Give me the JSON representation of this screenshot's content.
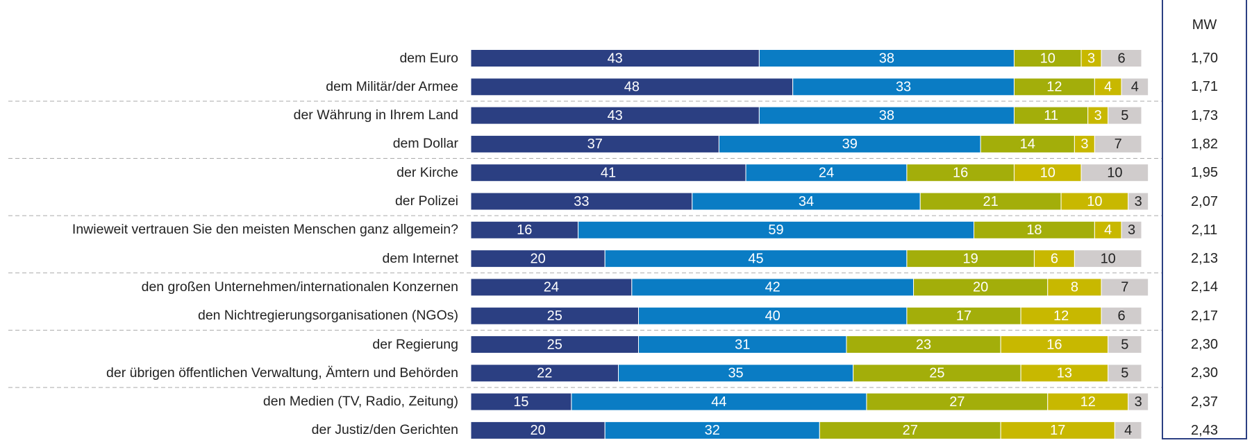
{
  "chart_data": {
    "type": "stacked-bar-horizontal",
    "categories": [
      "dem Euro",
      "dem Militär/der Armee",
      "der Währung in Ihrem Land",
      "dem Dollar",
      "der Kirche",
      "der Polizei",
      "Inwieweit vertrauen Sie den meisten Menschen ganz allgemein?",
      "dem Internet",
      "den großen Unternehmen/internationalen Konzernen",
      "den Nichtregierungsorganisationen (NGOs)",
      "der Regierung",
      "der übrigen öffentlichen Verwaltung, Ämtern und Behörden",
      "den Medien (TV, Radio, Zeitung)",
      "der Justiz/den Gerichten"
    ],
    "series": [
      {
        "color": "#2b3f82",
        "values": [
          43,
          48,
          43,
          37,
          41,
          33,
          16,
          20,
          24,
          25,
          25,
          22,
          15,
          20
        ]
      },
      {
        "color": "#0a7cc4",
        "values": [
          38,
          33,
          38,
          39,
          24,
          34,
          59,
          45,
          42,
          40,
          31,
          35,
          44,
          32
        ]
      },
      {
        "color": "#a3ae0a",
        "values": [
          10,
          12,
          11,
          14,
          16,
          21,
          18,
          19,
          20,
          17,
          23,
          25,
          27,
          27
        ]
      },
      {
        "color": "#c8b800",
        "values": [
          3,
          4,
          3,
          3,
          10,
          10,
          4,
          6,
          8,
          12,
          16,
          13,
          12,
          17
        ]
      },
      {
        "color": "#d0cccc",
        "values": [
          6,
          4,
          5,
          7,
          10,
          3,
          3,
          10,
          7,
          6,
          5,
          5,
          3,
          4
        ]
      }
    ],
    "xlim": [
      0,
      100
    ],
    "mw_title": "MW",
    "mw": [
      "1,70",
      "1,71",
      "1,73",
      "1,82",
      "1,95",
      "2,07",
      "2,11",
      "2,13",
      "2,14",
      "2,17",
      "2,30",
      "2,30",
      "2,37",
      "2,43"
    ]
  }
}
